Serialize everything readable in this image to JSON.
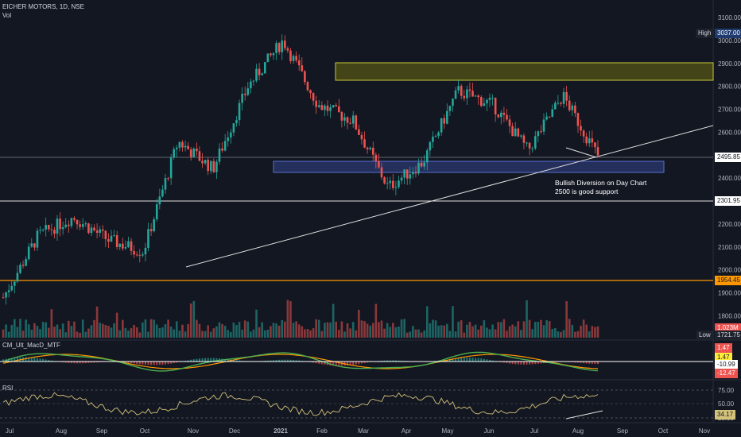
{
  "header": {
    "symbol_line": "EICHER MOTORS, 1D, NSE",
    "volume_label": "Vol",
    "macd_label": "CM_Ult_MacD_MTF",
    "rsi_label": "RSI"
  },
  "colors": {
    "background": "#131722",
    "bull": "#26a69a",
    "bear": "#ef5350",
    "support_zone": "#3b4a8a",
    "resistance_zone": "#8a8a1f",
    "orange_line": "#ff9800",
    "rsi_line": "#d4c27a"
  },
  "annotations": {
    "note_line1": "Bullish Diversion on Day Chart",
    "note_line2": "2500 is good support"
  },
  "price_axis": {
    "ticks": [
      "3100.00",
      "3000.00",
      "2900.00",
      "2800.00",
      "2700.00",
      "2600.00",
      "2400.00",
      "2200.00",
      "2100.00",
      "2000.00",
      "1900.00",
      "1800.00"
    ]
  },
  "price_tags": {
    "high_label": "High",
    "high_value": "3037.00",
    "current_price": "2495.85",
    "support_level": "2301.95",
    "orange_level": "1954.45",
    "volume_value": "1.023M",
    "low_label": "Low",
    "low_value": "1721.75"
  },
  "macd_axis": {
    "values": [
      "1.47",
      "1.47",
      "-10.99",
      "-12.47"
    ]
  },
  "rsi_axis": {
    "ticks": [
      "75.00",
      "50.00",
      "25.00"
    ],
    "current": "34.17"
  },
  "time_axis": {
    "labels": [
      "Jul",
      "Aug",
      "Sep",
      "Oct",
      "Nov",
      "Dec",
      "2021",
      "Feb",
      "Mar",
      "Apr",
      "May",
      "Jun",
      "Jul",
      "Aug",
      "Sep",
      "Oct",
      "Nov"
    ]
  },
  "chart_data": {
    "type": "candlestick",
    "title": "EICHER MOTORS, 1D, NSE",
    "price_ylim": [
      1721.75,
      3100
    ],
    "key_levels": {
      "high": 3037.0,
      "current": 2495.85,
      "support": 2301.95,
      "orange_line": 1954.45,
      "support_zone": [
        2440,
        2495
      ],
      "resistance_zone": [
        2830,
        2910
      ]
    },
    "approx_closes": [
      {
        "month": "Jul",
        "price": 1880
      },
      {
        "month": "Aug",
        "price": 2150
      },
      {
        "month": "Sep",
        "price": 2230
      },
      {
        "month": "Oct",
        "price": 2130
      },
      {
        "month": "Nov",
        "price": 2080
      },
      {
        "month": "Nov-end",
        "price": 2560
      },
      {
        "month": "Dec",
        "price": 2440
      },
      {
        "month": "2021",
        "price": 2800
      },
      {
        "month": "Feb",
        "price": 3000
      },
      {
        "month": "Feb-mid",
        "price": 2720
      },
      {
        "month": "Mar",
        "price": 2650
      },
      {
        "month": "Apr",
        "price": 2360
      },
      {
        "month": "May",
        "price": 2470
      },
      {
        "month": "Jun",
        "price": 2780
      },
      {
        "month": "Jul",
        "price": 2720
      },
      {
        "month": "Aug-early",
        "price": 2520
      },
      {
        "month": "Aug-mid",
        "price": 2760
      },
      {
        "month": "Aug-end",
        "price": 2495.85
      }
    ],
    "volume_last": "1.023M",
    "macd": {
      "macd": 1.47,
      "signal": 1.47,
      "hist": -10.99,
      "other": -12.47
    },
    "rsi": {
      "current": 34.17,
      "levels": [
        75,
        50,
        25
      ]
    }
  }
}
